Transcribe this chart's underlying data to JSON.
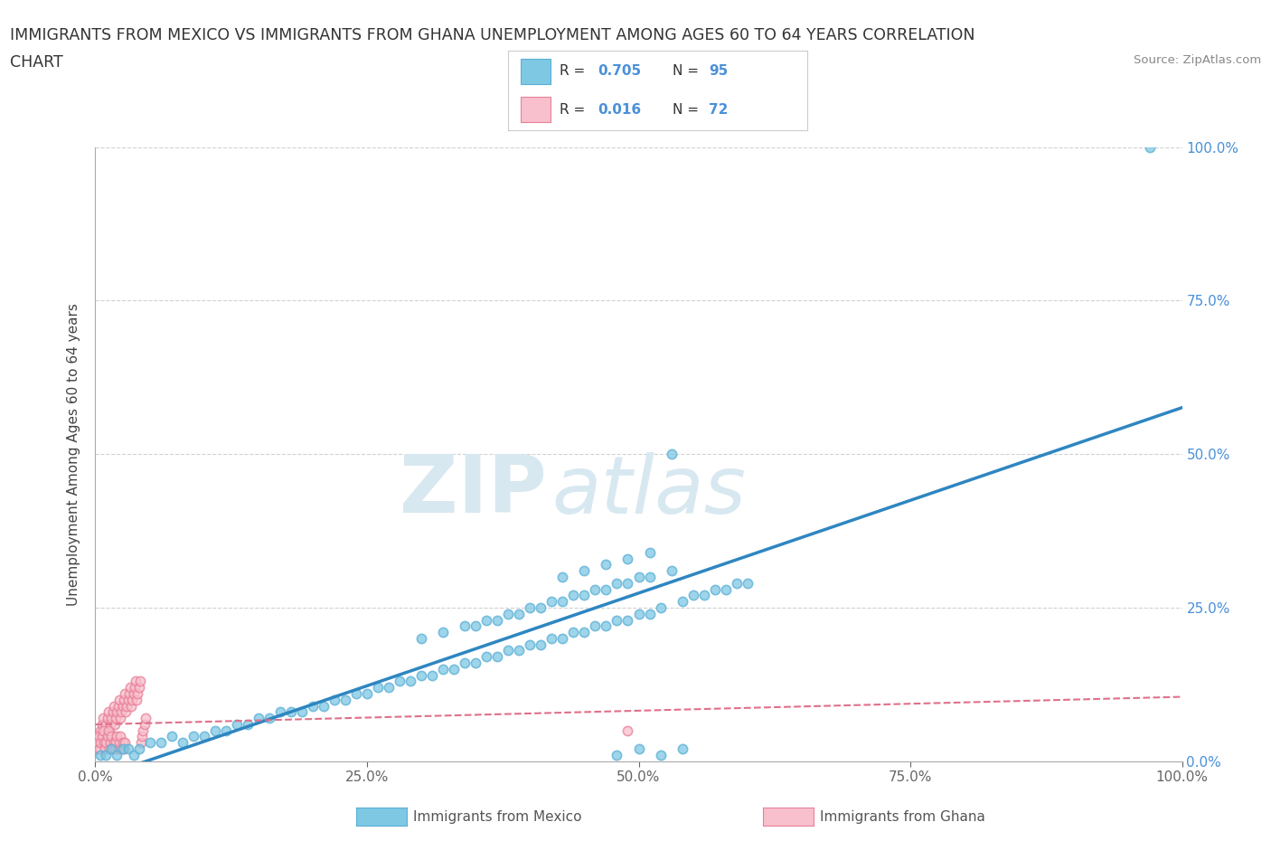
{
  "title_line1": "IMMIGRANTS FROM MEXICO VS IMMIGRANTS FROM GHANA UNEMPLOYMENT AMONG AGES 60 TO 64 YEARS CORRELATION",
  "title_line2": "CHART",
  "source_text": "Source: ZipAtlas.com",
  "ylabel": "Unemployment Among Ages 60 to 64 years",
  "xlim": [
    0.0,
    1.0
  ],
  "ylim": [
    0.0,
    1.0
  ],
  "mexico_dot_color": "#7EC8E3",
  "mexico_dot_edge": "#5BAFD6",
  "ghana_dot_color": "#F8C0CC",
  "ghana_dot_edge": "#E88099",
  "mexico_line_color": "#2E86C1",
  "ghana_line_color": "#E0708A",
  "right_tick_color": "#4A90D9",
  "watermark_color": "#e8eef4",
  "background": "#ffffff",
  "grid_color": "#cccccc",
  "legend_r_mexico": "0.705",
  "legend_n_mexico": "95",
  "legend_r_ghana": "0.016",
  "legend_n_ghana": "72",
  "legend_label_mexico": "Immigrants from Mexico",
  "legend_label_ghana": "Immigrants from Ghana",
  "title_fontsize": 12.5,
  "axis_label_fontsize": 11,
  "tick_fontsize": 11,
  "mexico_x": [
    0.005,
    0.01,
    0.015,
    0.02,
    0.025,
    0.03,
    0.035,
    0.04,
    0.05,
    0.06,
    0.07,
    0.08,
    0.09,
    0.1,
    0.11,
    0.12,
    0.13,
    0.14,
    0.15,
    0.16,
    0.17,
    0.18,
    0.19,
    0.2,
    0.21,
    0.22,
    0.23,
    0.24,
    0.25,
    0.26,
    0.27,
    0.28,
    0.29,
    0.3,
    0.31,
    0.32,
    0.33,
    0.34,
    0.35,
    0.36,
    0.37,
    0.38,
    0.39,
    0.4,
    0.41,
    0.42,
    0.43,
    0.44,
    0.45,
    0.46,
    0.47,
    0.48,
    0.49,
    0.5,
    0.51,
    0.52,
    0.53,
    0.54,
    0.55,
    0.56,
    0.57,
    0.58,
    0.59,
    0.6,
    0.3,
    0.32,
    0.34,
    0.36,
    0.38,
    0.4,
    0.42,
    0.44,
    0.46,
    0.48,
    0.5,
    0.35,
    0.37,
    0.39,
    0.41,
    0.43,
    0.45,
    0.47,
    0.49,
    0.51,
    0.53,
    0.43,
    0.45,
    0.47,
    0.49,
    0.51,
    0.48,
    0.5,
    0.52,
    0.54,
    0.97
  ],
  "mexico_y": [
    0.01,
    0.01,
    0.02,
    0.01,
    0.02,
    0.02,
    0.01,
    0.02,
    0.03,
    0.03,
    0.04,
    0.03,
    0.04,
    0.04,
    0.05,
    0.05,
    0.06,
    0.06,
    0.07,
    0.07,
    0.08,
    0.08,
    0.08,
    0.09,
    0.09,
    0.1,
    0.1,
    0.11,
    0.11,
    0.12,
    0.12,
    0.13,
    0.13,
    0.14,
    0.14,
    0.15,
    0.15,
    0.16,
    0.16,
    0.17,
    0.17,
    0.18,
    0.18,
    0.19,
    0.19,
    0.2,
    0.2,
    0.21,
    0.21,
    0.22,
    0.22,
    0.23,
    0.23,
    0.24,
    0.24,
    0.25,
    0.5,
    0.26,
    0.27,
    0.27,
    0.28,
    0.28,
    0.29,
    0.29,
    0.2,
    0.21,
    0.22,
    0.23,
    0.24,
    0.25,
    0.26,
    0.27,
    0.28,
    0.29,
    0.3,
    0.22,
    0.23,
    0.24,
    0.25,
    0.26,
    0.27,
    0.28,
    0.29,
    0.3,
    0.31,
    0.3,
    0.31,
    0.32,
    0.33,
    0.34,
    0.01,
    0.02,
    0.01,
    0.02,
    1.0
  ],
  "ghana_x": [
    0.002,
    0.003,
    0.004,
    0.005,
    0.006,
    0.007,
    0.008,
    0.009,
    0.01,
    0.011,
    0.012,
    0.013,
    0.014,
    0.015,
    0.016,
    0.017,
    0.018,
    0.019,
    0.02,
    0.021,
    0.022,
    0.023,
    0.024,
    0.025,
    0.026,
    0.027,
    0.028,
    0.029,
    0.03,
    0.031,
    0.032,
    0.033,
    0.034,
    0.035,
    0.036,
    0.037,
    0.038,
    0.039,
    0.04,
    0.041,
    0.042,
    0.043,
    0.044,
    0.045,
    0.046,
    0.002,
    0.003,
    0.004,
    0.005,
    0.006,
    0.007,
    0.008,
    0.009,
    0.01,
    0.011,
    0.012,
    0.013,
    0.014,
    0.015,
    0.016,
    0.017,
    0.018,
    0.019,
    0.02,
    0.021,
    0.022,
    0.023,
    0.024,
    0.025,
    0.026,
    0.027,
    0.49
  ],
  "ghana_y": [
    0.02,
    0.03,
    0.04,
    0.05,
    0.06,
    0.07,
    0.04,
    0.05,
    0.06,
    0.07,
    0.08,
    0.05,
    0.06,
    0.07,
    0.08,
    0.09,
    0.06,
    0.07,
    0.08,
    0.09,
    0.1,
    0.07,
    0.08,
    0.09,
    0.1,
    0.11,
    0.08,
    0.09,
    0.1,
    0.11,
    0.12,
    0.09,
    0.1,
    0.11,
    0.12,
    0.13,
    0.1,
    0.11,
    0.12,
    0.13,
    0.03,
    0.04,
    0.05,
    0.06,
    0.07,
    0.03,
    0.04,
    0.02,
    0.03,
    0.04,
    0.05,
    0.03,
    0.02,
    0.03,
    0.04,
    0.05,
    0.02,
    0.03,
    0.04,
    0.02,
    0.03,
    0.02,
    0.03,
    0.04,
    0.02,
    0.03,
    0.04,
    0.02,
    0.03,
    0.02,
    0.03,
    0.05
  ]
}
